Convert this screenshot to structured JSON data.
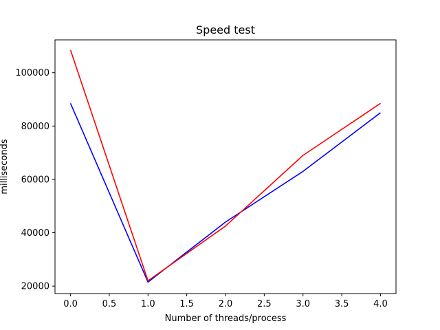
{
  "chart_data": {
    "type": "line",
    "title": "Speed test",
    "xlabel": "Number of threads/process",
    "ylabel": "milliseconds",
    "x": [
      0,
      1,
      2,
      3,
      4
    ],
    "series": [
      {
        "color": "#0000ff",
        "values": [
          88500,
          21500,
          44000,
          63000,
          85000
        ]
      },
      {
        "color": "#ff0000",
        "values": [
          108500,
          22000,
          42500,
          69000,
          88500
        ]
      }
    ],
    "xlim": [
      -0.2,
      4.2
    ],
    "ylim": [
      17200,
      112300
    ],
    "xticks": [
      0.0,
      0.5,
      1.0,
      1.5,
      2.0,
      2.5,
      3.0,
      3.5,
      4.0
    ],
    "xtick_labels": [
      "0.0",
      "0.5",
      "1.0",
      "1.5",
      "2.0",
      "2.5",
      "3.0",
      "3.5",
      "4.0"
    ],
    "yticks": [
      20000,
      40000,
      60000,
      80000,
      100000
    ],
    "ytick_labels": [
      "20000",
      "40000",
      "60000",
      "80000",
      "100000"
    ],
    "grid": false,
    "legend": false
  }
}
